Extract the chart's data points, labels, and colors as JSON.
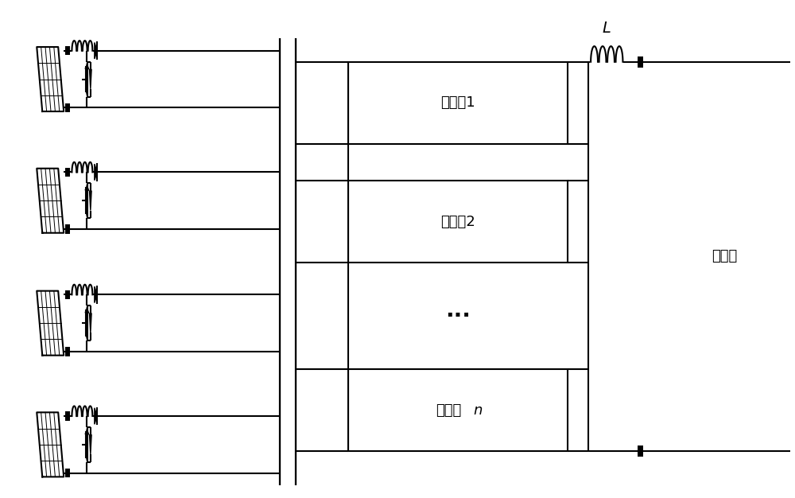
{
  "bg_color": "#ffffff",
  "line_color": "#000000",
  "line_width": 1.5,
  "fig_width": 10.0,
  "fig_height": 6.26,
  "submodule_labels": [
    "子模块1",
    "子模块2",
    "子模块n"
  ],
  "inductor_label": "L",
  "right_label": "中压侧",
  "dots_text": "···"
}
